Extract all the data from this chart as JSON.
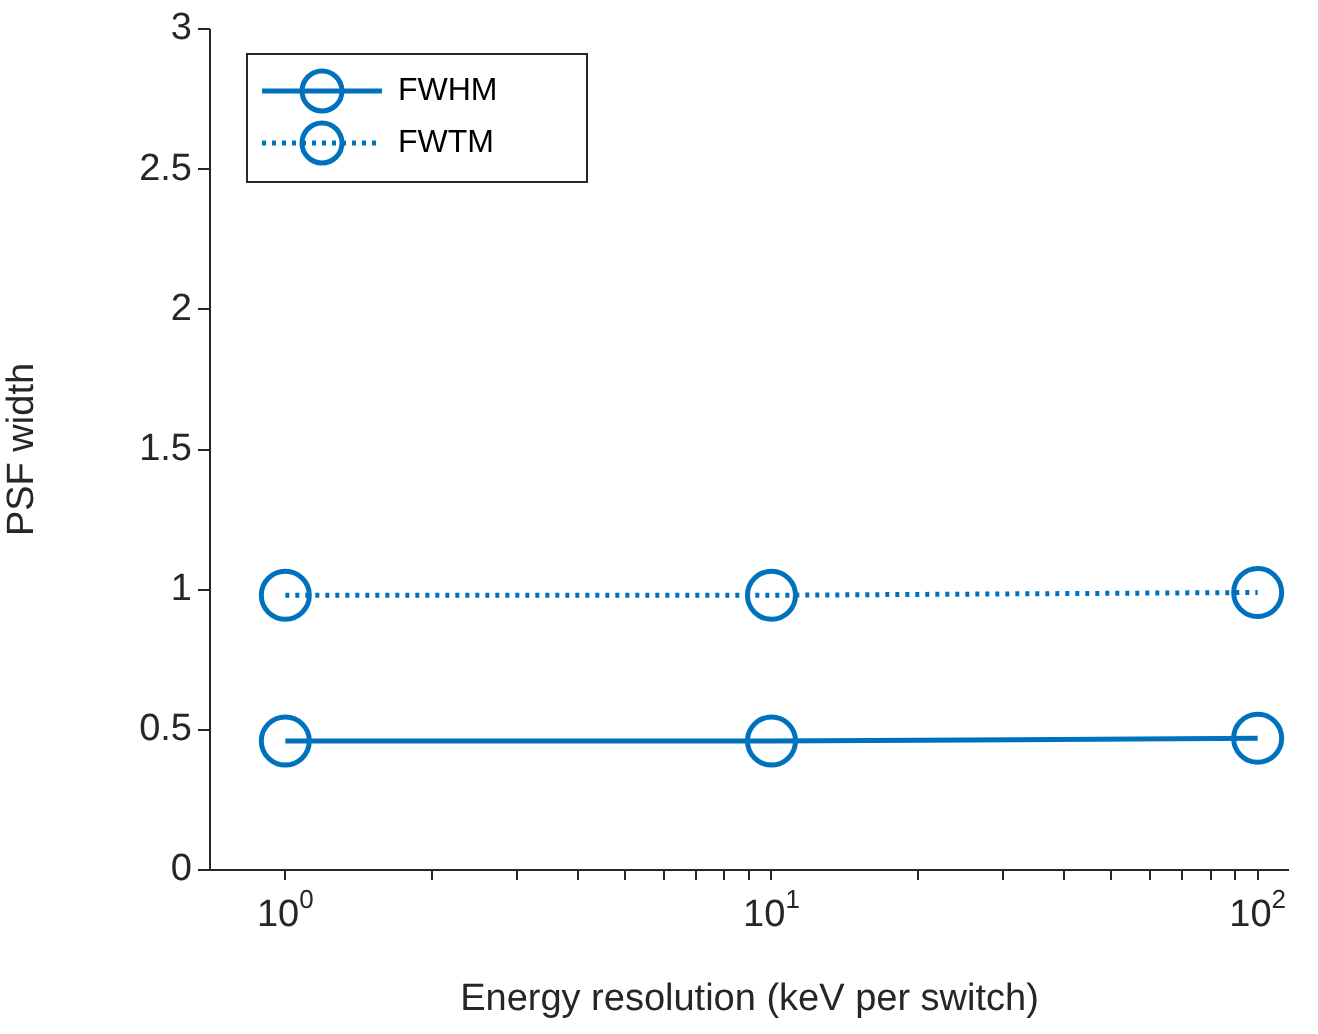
{
  "chart_data": {
    "type": "line",
    "xlabel": "Energy resolution (keV per switch)",
    "ylabel": "PSF width",
    "x": [
      1,
      10,
      100
    ],
    "series": [
      {
        "name": "FWHM",
        "color": "#0072bd",
        "values": [
          0.46,
          0.46,
          0.47
        ],
        "line_style": "solid"
      },
      {
        "name": "FWTM",
        "color": "#0072bd",
        "values": [
          0.98,
          0.98,
          0.99
        ],
        "line_style": "dotted"
      }
    ],
    "log": "x",
    "marker": "circle",
    "legend": "top left",
    "grid": false,
    "xlim": [
      0.7,
      116
    ],
    "xticks": [
      {
        "value": 1,
        "label": "10$^{0}$"
      },
      {
        "value": 2,
        "label": null
      },
      {
        "value": 3,
        "label": null
      },
      {
        "value": 4,
        "label": null
      },
      {
        "value": 5,
        "label": null
      },
      {
        "value": 6,
        "label": null
      },
      {
        "value": 7,
        "label": null
      },
      {
        "value": 8,
        "label": null
      },
      {
        "value": 9,
        "label": null
      },
      {
        "value": 10,
        "label": "10$^{1}$"
      },
      {
        "value": 20,
        "label": null
      },
      {
        "value": 30,
        "label": null
      },
      {
        "value": 40,
        "label": null
      },
      {
        "value": 50,
        "label": null
      },
      {
        "value": 60,
        "label": null
      },
      {
        "value": 70,
        "label": null
      },
      {
        "value": 80,
        "label": null
      },
      {
        "value": 90,
        "label": null
      },
      {
        "value": 100,
        "label": "10$^{2}$"
      }
    ],
    "ylim": [
      0,
      3
    ],
    "yticks": [
      0,
      0.5,
      1,
      1.5,
      2,
      2.5,
      3
    ]
  }
}
